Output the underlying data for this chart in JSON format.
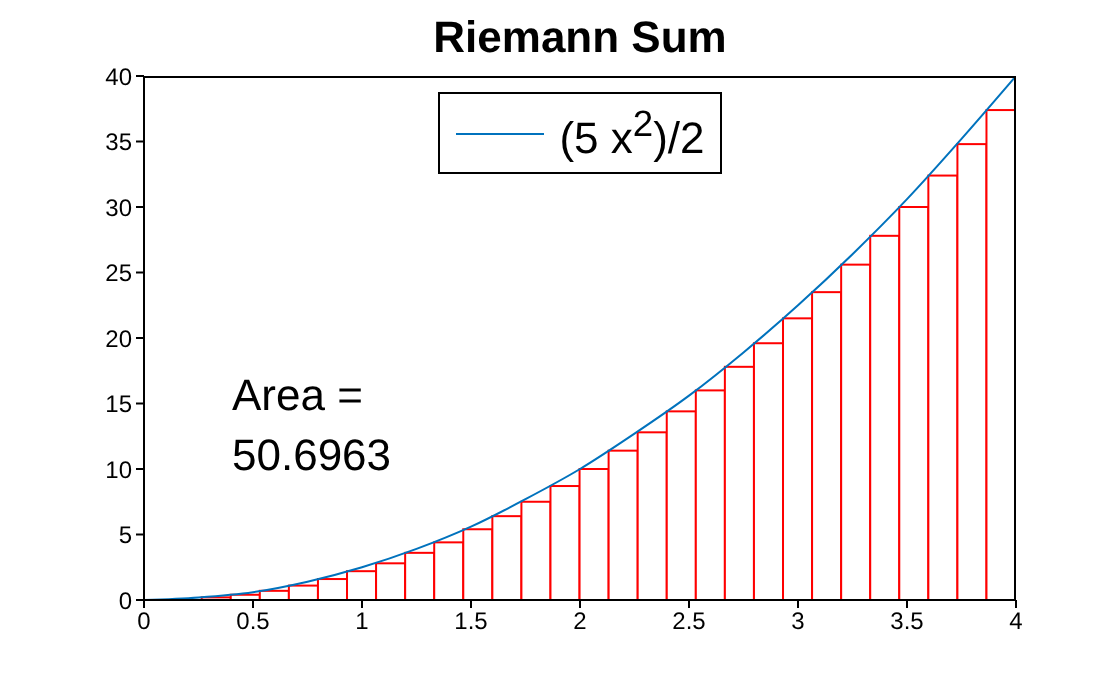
{
  "chart_data": {
    "type": "bar",
    "title": "Riemann Sum",
    "xlim": [
      0,
      4
    ],
    "xticks": [
      0,
      0.5,
      1,
      1.5,
      2,
      2.5,
      3,
      3.5,
      4
    ],
    "ylim": [
      0,
      40
    ],
    "yticks": [
      0,
      5,
      10,
      15,
      20,
      25,
      30,
      35,
      40
    ],
    "grid": false,
    "legend": "top",
    "annotations": [
      "Area =\n50.6963"
    ],
    "series": [
      {
        "color": "#ff0000",
        "x": [
          0.0667,
          0.2,
          0.3333,
          0.4667,
          0.6,
          0.7333,
          0.8667,
          1,
          1.1333,
          1.2667,
          1.4,
          1.5333,
          1.6667,
          1.8,
          1.9333,
          2.0667,
          2.2,
          2.3333,
          2.4667,
          2.6,
          2.7333,
          2.8667,
          3,
          3.1333,
          3.2667,
          3.4,
          3.5333,
          3.6667,
          3.8,
          3.9333
        ],
        "values": [
          0,
          0,
          0.2,
          0.4,
          0.7,
          1.1,
          1.6,
          2.2,
          2.8,
          3.6,
          4.4,
          5.4,
          6.4,
          7.5,
          8.7,
          10,
          11.4,
          12.8,
          14.4,
          16,
          17.8,
          19.6,
          21.5,
          23.5,
          25.6,
          27.8,
          30,
          32.4,
          34.8,
          37.4
        ]
      },
      {
        "type": "line",
        "name": "(5  x$^{2}$)/2",
        "color": "#0072bd",
        "x": [
          0,
          0.25,
          0.5,
          0.75,
          1,
          1.25,
          1.5,
          1.75,
          2,
          2.25,
          2.5,
          2.75,
          3,
          3.25,
          3.5,
          3.75,
          4
        ],
        "values": [
          0,
          0.2,
          0.6,
          1.4,
          2.5,
          3.9,
          5.6,
          7.7,
          10,
          12.7,
          15.6,
          18.9,
          22.5,
          26.4,
          30.6,
          35.2,
          40
        ]
      }
    ]
  }
}
